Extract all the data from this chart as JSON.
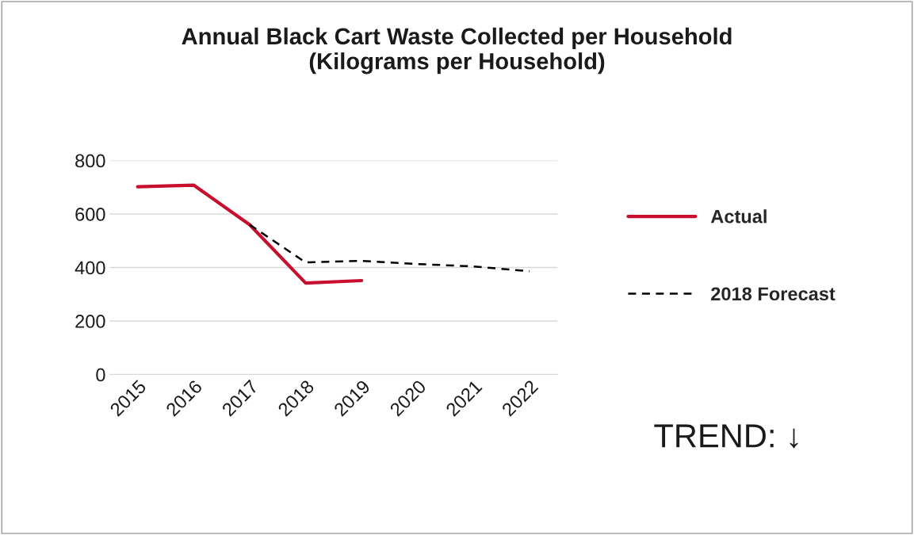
{
  "chart_data": {
    "type": "line",
    "title": "Annual Black Cart Waste Collected per Household\n(Kilograms per Household)",
    "categories": [
      "2015",
      "2016",
      "2017",
      "2018",
      "2019",
      "2020",
      "2021",
      "2022"
    ],
    "series": [
      {
        "name": "Actual",
        "color": "#c8102e",
        "line_style": "solid",
        "values": [
          702,
          708,
          560,
          342,
          351,
          null,
          null,
          null
        ]
      },
      {
        "name": "2018 Forecast",
        "color": "#000000",
        "line_style": "dashed",
        "values": [
          null,
          null,
          560,
          419,
          425,
          413,
          404,
          386
        ]
      }
    ],
    "ylim": [
      0,
      800
    ],
    "yticks": [
      0,
      200,
      400,
      600,
      800
    ],
    "grid": "y",
    "legend": "right",
    "annotations": [
      "TREND: ↓"
    ]
  }
}
